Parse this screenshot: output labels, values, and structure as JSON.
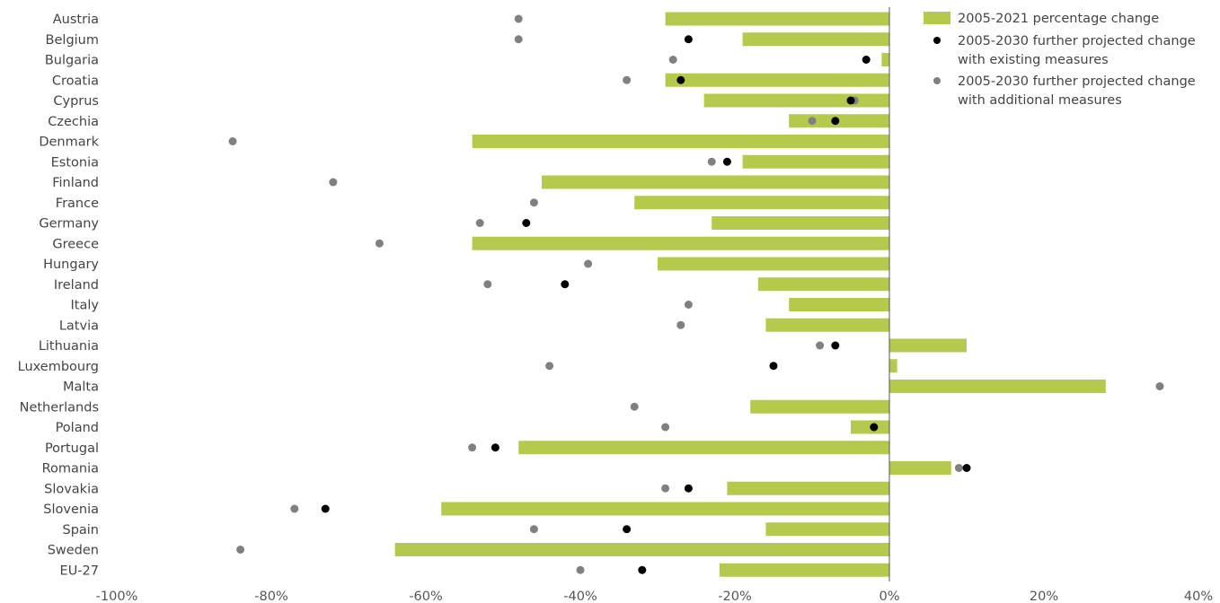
{
  "colors": {
    "bar": "#b5c94c",
    "existing": "#000000",
    "additional": "#808080",
    "axis_text": "#555555",
    "label_text": "#444444",
    "zero_line": "#555555"
  },
  "chart_data": {
    "type": "bar",
    "orientation": "horizontal",
    "xlim": [
      -100,
      40
    ],
    "xticks": [
      -100,
      -80,
      -60,
      -40,
      -20,
      0,
      20,
      40
    ],
    "xtick_labels": [
      "-100%",
      "-80%",
      "-60%",
      "-40%",
      "-20%",
      "0%",
      "20%",
      "40%"
    ],
    "grid": false,
    "legend_position": "top-right",
    "categories": [
      "Austria",
      "Belgium",
      "Bulgaria",
      "Croatia",
      "Cyprus",
      "Czechia",
      "Denmark",
      "Estonia",
      "Finland",
      "France",
      "Germany",
      "Greece",
      "Hungary",
      "Ireland",
      "Italy",
      "Latvia",
      "Lithuania",
      "Luxembourg",
      "Malta",
      "Netherlands",
      "Poland",
      "Portugal",
      "Romania",
      "Slovakia",
      "Slovenia",
      "Spain",
      "Sweden",
      "EU-27"
    ],
    "series": [
      {
        "name": "2005-2021 percentage change",
        "kind": "bar",
        "values": [
          -29,
          -19,
          -1,
          -29,
          -24,
          -13,
          -54,
          -19,
          -45,
          -33,
          -23,
          -54,
          -30,
          -17,
          -13,
          -16,
          10,
          1,
          28,
          -18,
          -5,
          -48,
          8,
          -21,
          -58,
          -16,
          -64,
          -22
        ]
      },
      {
        "name": "2005-2030 further projected change with existing measures",
        "kind": "point",
        "values": [
          null,
          -26,
          -3,
          -27,
          -5,
          -7,
          null,
          -21,
          null,
          null,
          -47,
          null,
          null,
          -42,
          null,
          null,
          -7,
          -15,
          null,
          null,
          -2,
          -51,
          10,
          -26,
          -73,
          -34,
          null,
          -32
        ]
      },
      {
        "name": "2005-2030 further projected change with additional measures",
        "kind": "point",
        "values": [
          -48,
          -48,
          -28,
          -34,
          -4.5,
          -10,
          -85,
          -23,
          -72,
          -46,
          -53,
          -66,
          -39,
          -52,
          -26,
          -27,
          -9,
          -44,
          35,
          -33,
          -29,
          -54,
          9,
          -29,
          -77,
          -46,
          -84,
          -40
        ]
      }
    ],
    "legend": [
      {
        "label_lines": [
          "2005-2021 percentage change"
        ]
      },
      {
        "label_lines": [
          "2005-2030 further projected change",
          "with existing measures"
        ]
      },
      {
        "label_lines": [
          "2005-2030 further projected change",
          "with additional measures"
        ]
      }
    ]
  }
}
